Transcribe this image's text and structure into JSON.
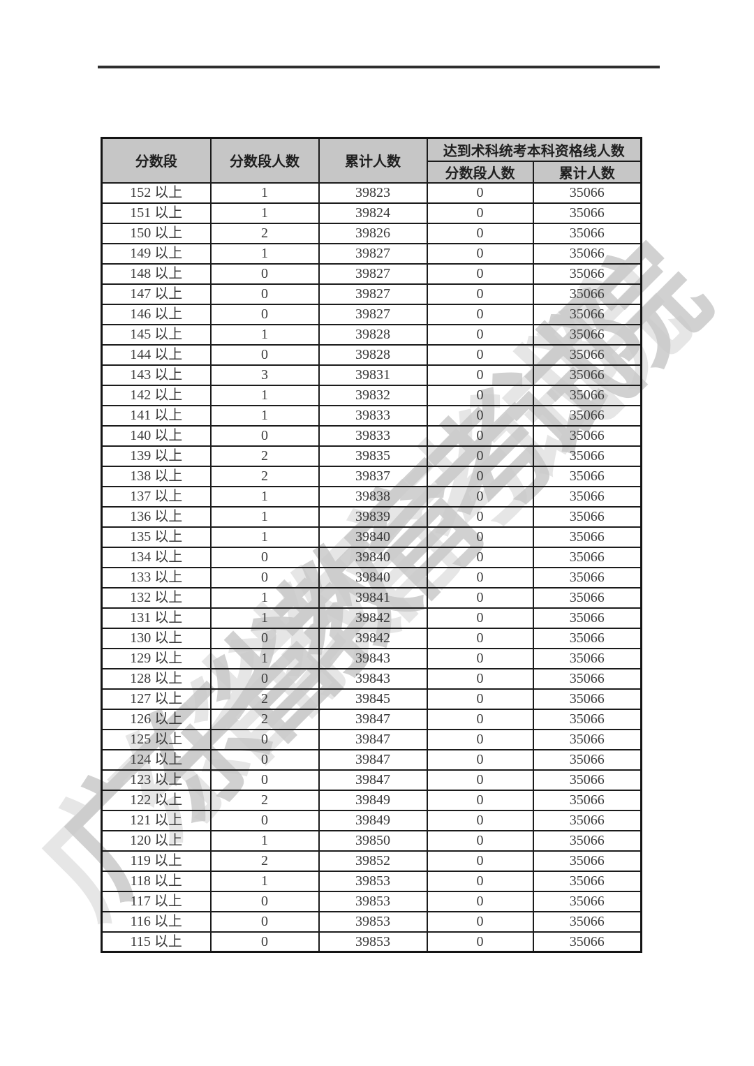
{
  "colors": {
    "header_bg": "#c6c6c6",
    "border": "#1b1b1b",
    "rule": "#2e2e2e",
    "text": "#3a3a3a",
    "watermark": "#c9c9c9"
  },
  "watermark": {
    "text": "广东省教育考试院"
  },
  "table": {
    "headers": {
      "score_band": "分数段",
      "band_count": "分数段人数",
      "cumulative": "累计人数",
      "qualified_group": "达到术科统考本科资格线人数",
      "qualified_band_count": "分数段人数",
      "qualified_cumulative": "累计人数"
    },
    "rows": [
      [
        "152 以上",
        "1",
        "39823",
        "0",
        "35066"
      ],
      [
        "151 以上",
        "1",
        "39824",
        "0",
        "35066"
      ],
      [
        "150 以上",
        "2",
        "39826",
        "0",
        "35066"
      ],
      [
        "149 以上",
        "1",
        "39827",
        "0",
        "35066"
      ],
      [
        "148 以上",
        "0",
        "39827",
        "0",
        "35066"
      ],
      [
        "147 以上",
        "0",
        "39827",
        "0",
        "35066"
      ],
      [
        "146 以上",
        "0",
        "39827",
        "0",
        "35066"
      ],
      [
        "145 以上",
        "1",
        "39828",
        "0",
        "35066"
      ],
      [
        "144 以上",
        "0",
        "39828",
        "0",
        "35066"
      ],
      [
        "143 以上",
        "3",
        "39831",
        "0",
        "35066"
      ],
      [
        "142 以上",
        "1",
        "39832",
        "0",
        "35066"
      ],
      [
        "141 以上",
        "1",
        "39833",
        "0",
        "35066"
      ],
      [
        "140 以上",
        "0",
        "39833",
        "0",
        "35066"
      ],
      [
        "139 以上",
        "2",
        "39835",
        "0",
        "35066"
      ],
      [
        "138 以上",
        "2",
        "39837",
        "0",
        "35066"
      ],
      [
        "137 以上",
        "1",
        "39838",
        "0",
        "35066"
      ],
      [
        "136 以上",
        "1",
        "39839",
        "0",
        "35066"
      ],
      [
        "135 以上",
        "1",
        "39840",
        "0",
        "35066"
      ],
      [
        "134 以上",
        "0",
        "39840",
        "0",
        "35066"
      ],
      [
        "133 以上",
        "0",
        "39840",
        "0",
        "35066"
      ],
      [
        "132 以上",
        "1",
        "39841",
        "0",
        "35066"
      ],
      [
        "131 以上",
        "1",
        "39842",
        "0",
        "35066"
      ],
      [
        "130 以上",
        "0",
        "39842",
        "0",
        "35066"
      ],
      [
        "129 以上",
        "1",
        "39843",
        "0",
        "35066"
      ],
      [
        "128 以上",
        "0",
        "39843",
        "0",
        "35066"
      ],
      [
        "127 以上",
        "2",
        "39845",
        "0",
        "35066"
      ],
      [
        "126 以上",
        "2",
        "39847",
        "0",
        "35066"
      ],
      [
        "125 以上",
        "0",
        "39847",
        "0",
        "35066"
      ],
      [
        "124 以上",
        "0",
        "39847",
        "0",
        "35066"
      ],
      [
        "123 以上",
        "0",
        "39847",
        "0",
        "35066"
      ],
      [
        "122 以上",
        "2",
        "39849",
        "0",
        "35066"
      ],
      [
        "121 以上",
        "0",
        "39849",
        "0",
        "35066"
      ],
      [
        "120 以上",
        "1",
        "39850",
        "0",
        "35066"
      ],
      [
        "119 以上",
        "2",
        "39852",
        "0",
        "35066"
      ],
      [
        "118 以上",
        "1",
        "39853",
        "0",
        "35066"
      ],
      [
        "117 以上",
        "0",
        "39853",
        "0",
        "35066"
      ],
      [
        "116 以上",
        "0",
        "39853",
        "0",
        "35066"
      ],
      [
        "115 以上",
        "0",
        "39853",
        "0",
        "35066"
      ]
    ]
  }
}
